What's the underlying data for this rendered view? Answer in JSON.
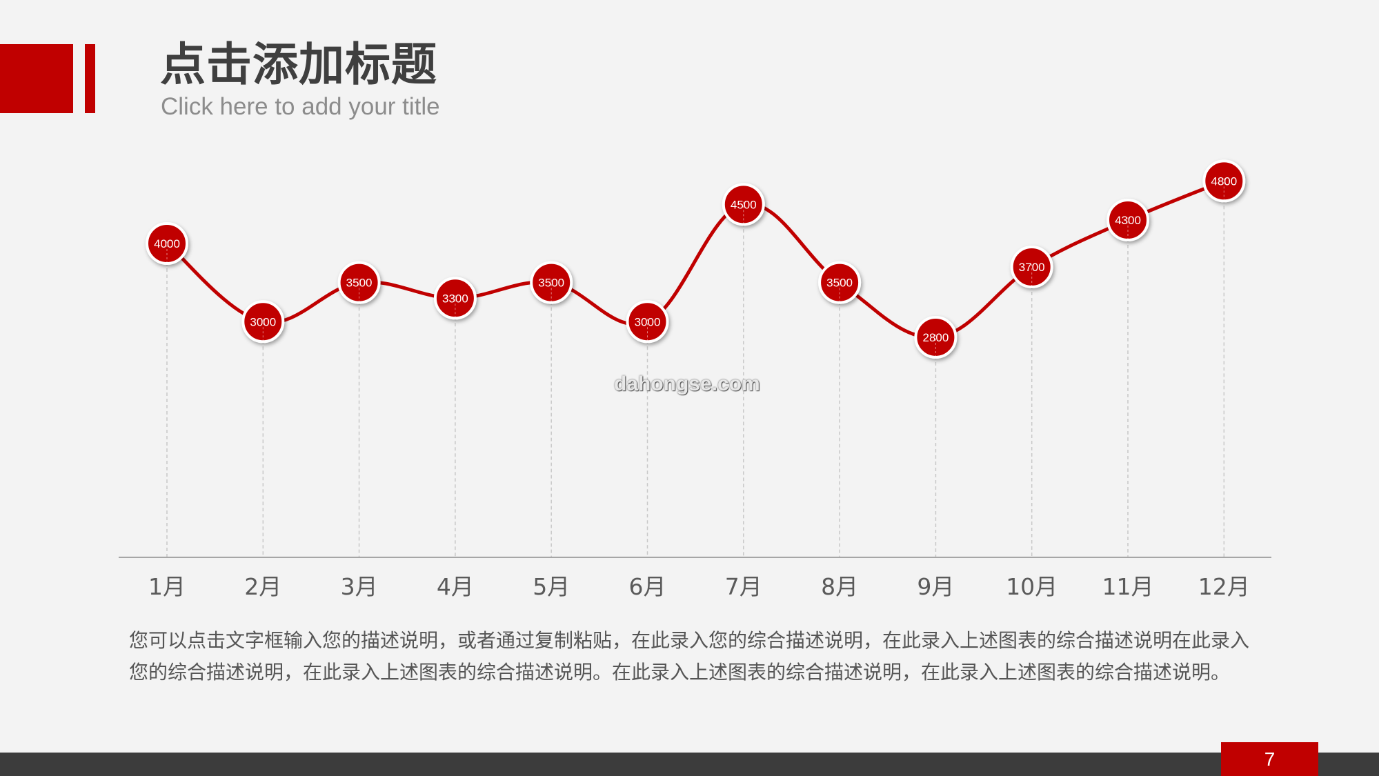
{
  "header": {
    "title": "点击添加标题",
    "subtitle": "Click here to add your title"
  },
  "watermark": "dahongse.com",
  "chart_data": {
    "type": "line",
    "categories": [
      "1月",
      "2月",
      "3月",
      "4月",
      "5月",
      "6月",
      "7月",
      "8月",
      "9月",
      "10月",
      "11月",
      "12月"
    ],
    "series": [
      {
        "values": [
          4000,
          3000,
          3500,
          3300,
          3500,
          3000,
          4500,
          3500,
          2800,
          3700,
          4300,
          4800
        ]
      }
    ],
    "data_labels": true,
    "smooth": true,
    "y_axis_visible": false,
    "grid": "vertical-dashed",
    "colors": {
      "line": "#c00000",
      "marker": "#c00000",
      "marker_border": "#ffffff"
    }
  },
  "description": "您可以点击文字框输入您的描述说明，或者通过复制粘贴，在此录入您的综合描述说明，在此录入上述图表的综合描述说明在此录入您的综合描述说明，在此录入上述图表的综合描述说明。在此录入上述图表的综合描述说明，在此录入上述图表的综合描述说明。",
  "page_number": "7"
}
